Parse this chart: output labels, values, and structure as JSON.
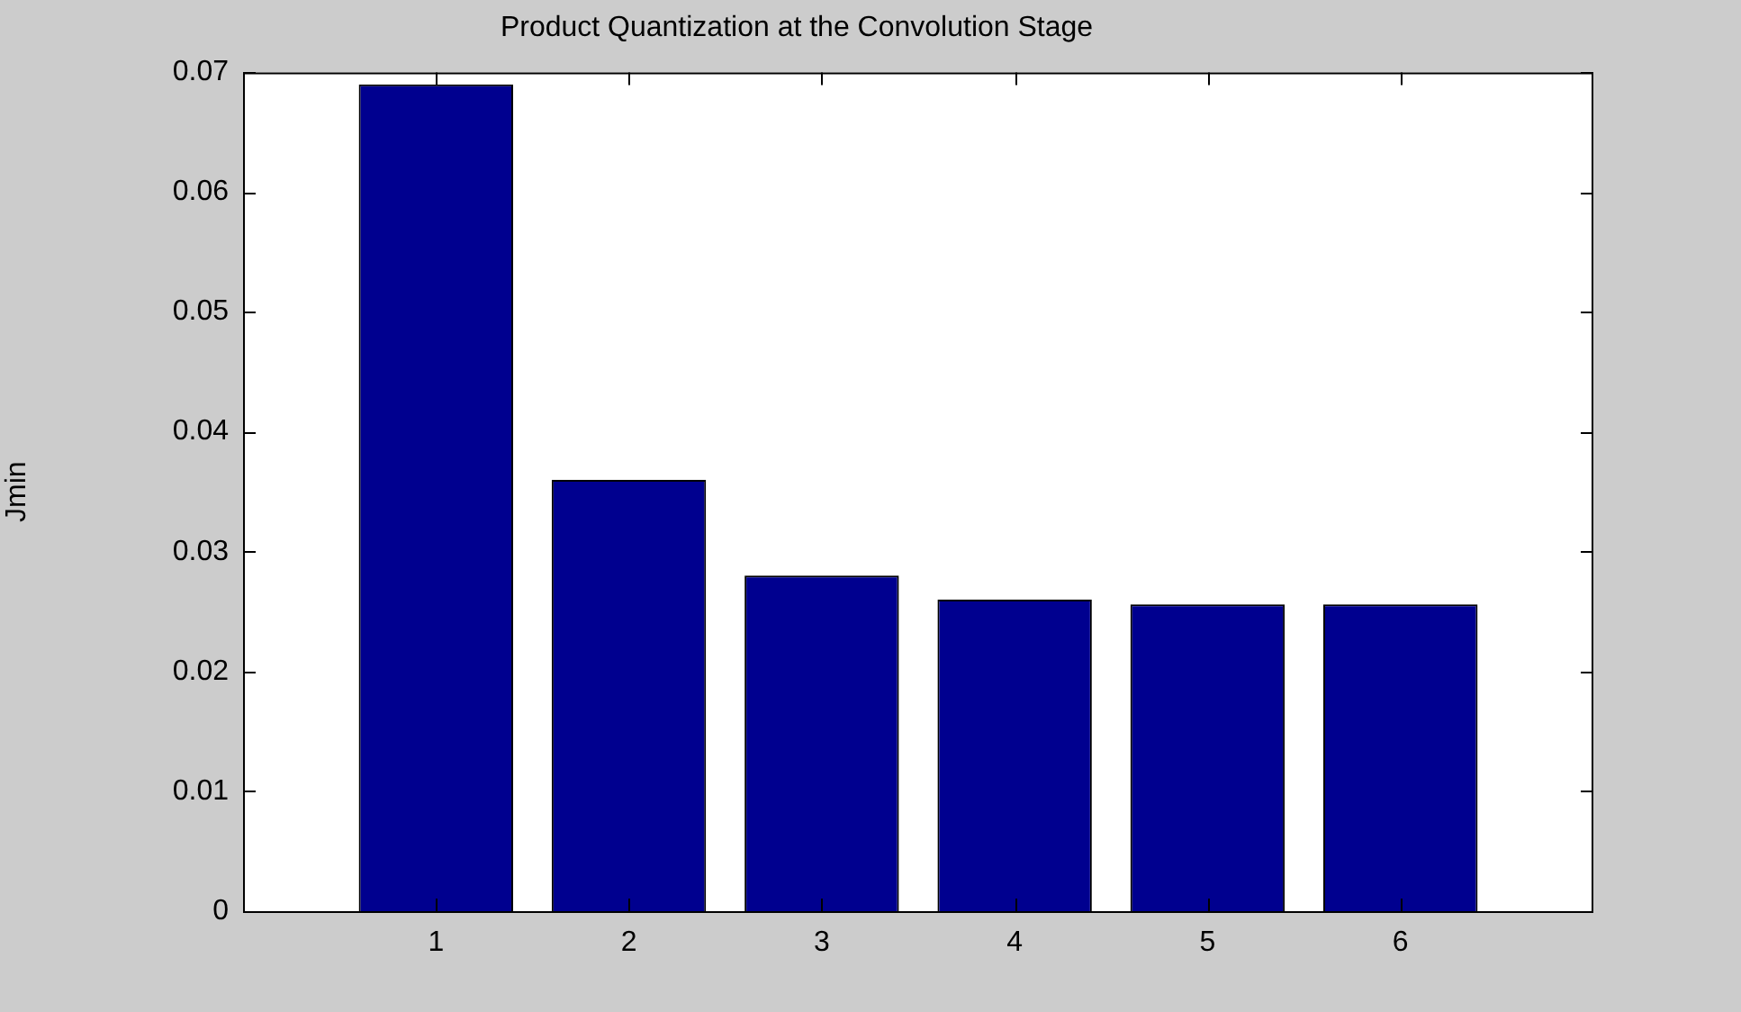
{
  "chart_data": {
    "type": "bar",
    "title": "Product Quantization at the Convolution Stage",
    "ylabel": "Jmin",
    "x": [
      1,
      2,
      3,
      4,
      5,
      6
    ],
    "values": [
      0.069,
      0.036,
      0.028,
      0.026,
      0.0256,
      0.0256
    ],
    "color": "#00008f",
    "xlim": [
      0,
      7
    ],
    "xticks": [
      1,
      2,
      3,
      4,
      5,
      6
    ],
    "ylim": [
      0,
      0.07
    ],
    "yticks": [
      0,
      0.01,
      0.02,
      0.03,
      0.04,
      0.05,
      0.06,
      0.07
    ]
  }
}
